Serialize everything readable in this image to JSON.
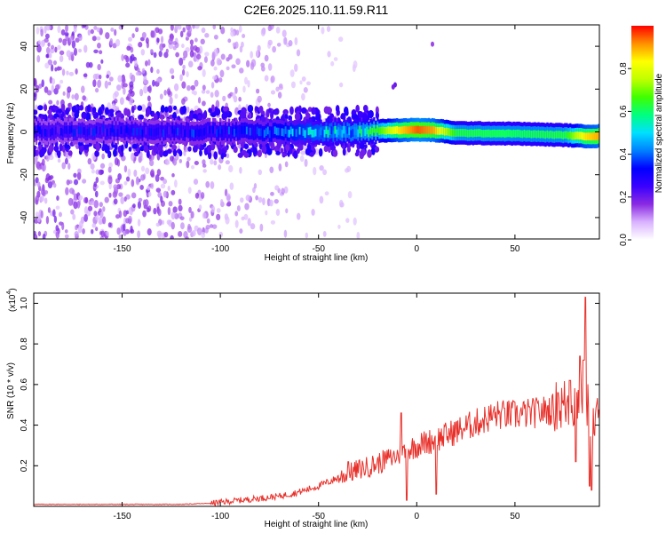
{
  "title": "C2E6.2025.110.11.59.R11",
  "chart_data": [
    {
      "type": "heatmap",
      "title": "C2E6.2025.110.11.59.R11",
      "xlabel": "Height of straight line (km)",
      "ylabel": "Frequency (Hz)",
      "xlim": [
        -195,
        93
      ],
      "ylim": [
        -50,
        50
      ],
      "x_ticks": [
        -150,
        -100,
        -50,
        0,
        50
      ],
      "y_ticks": [
        -40,
        -20,
        0,
        20,
        40
      ],
      "colorbar": {
        "label": "Normalized spectral amplitude",
        "range": [
          0,
          1
        ],
        "ticks": [
          0.0,
          0.2,
          0.4,
          0.6,
          0.8
        ],
        "colors": [
          "#ffffff",
          "#d9b3ff",
          "#8a2be2",
          "#3a00ff",
          "#0000ff",
          "#0080ff",
          "#00e0ff",
          "#00ff80",
          "#40ff00",
          "#c0ff00",
          "#ffff00",
          "#ff9000",
          "#ff0000"
        ]
      },
      "ridge": {
        "x": [
          -195,
          -150,
          -100,
          -75,
          -50,
          -30,
          -20,
          -10,
          0,
          8,
          20,
          50,
          75,
          85,
          93
        ],
        "center_hz": [
          0.5,
          0.5,
          0,
          0,
          0,
          0,
          0.5,
          0.8,
          1.0,
          0.8,
          -0.5,
          -0.8,
          -1.5,
          -2,
          -2
        ],
        "peak_amplitude": [
          0.33,
          0.35,
          0.38,
          0.45,
          0.55,
          0.6,
          0.65,
          0.85,
          0.95,
          0.9,
          0.62,
          0.6,
          0.62,
          0.85,
          0.9
        ]
      }
    },
    {
      "type": "line",
      "xlabel": "Height of straight line (km)",
      "ylabel": "SNR (10 * v/v)",
      "y_multiplier": "(x10",
      "y_multiplier_exp": "4",
      "xlim": [
        -195,
        93
      ],
      "ylim": [
        0,
        1.05
      ],
      "x_ticks": [
        -150,
        -100,
        -50,
        0,
        50
      ],
      "y_ticks": [
        0.2,
        0.4,
        0.6,
        0.8,
        1.0
      ],
      "series": [
        {
          "color": "#e8302a",
          "x": [
            -195,
            -180,
            -160,
            -140,
            -120,
            -105,
            -100,
            -90,
            -80,
            -70,
            -60,
            -50,
            -40,
            -30,
            -20,
            -10,
            0,
            10,
            20,
            30,
            40,
            50,
            60,
            70,
            75,
            80,
            85,
            88,
            90,
            93
          ],
          "y": [
            0.01,
            0.01,
            0.01,
            0.01,
            0.01,
            0.015,
            0.02,
            0.03,
            0.04,
            0.05,
            0.07,
            0.1,
            0.14,
            0.18,
            0.21,
            0.25,
            0.3,
            0.33,
            0.37,
            0.41,
            0.45,
            0.45,
            0.46,
            0.48,
            0.5,
            0.52,
            0.58,
            0.45,
            0.4,
            0.45
          ],
          "spikes": [
            {
              "x": -35,
              "y": 0.22
            },
            {
              "x": -14,
              "y": 0.24
            },
            {
              "x": -8,
              "y": 0.46
            },
            {
              "x": -5,
              "y": 0.03
            },
            {
              "x": 10,
              "y": 0.06
            },
            {
              "x": 72,
              "y": 0.56
            },
            {
              "x": 78,
              "y": 0.62
            },
            {
              "x": 81,
              "y": 0.22
            },
            {
              "x": 83,
              "y": 0.74
            },
            {
              "x": 85,
              "y": 0.72
            },
            {
              "x": 86,
              "y": 1.03
            },
            {
              "x": 88,
              "y": 0.1
            },
            {
              "x": 89,
              "y": 0.08
            }
          ]
        }
      ]
    }
  ]
}
